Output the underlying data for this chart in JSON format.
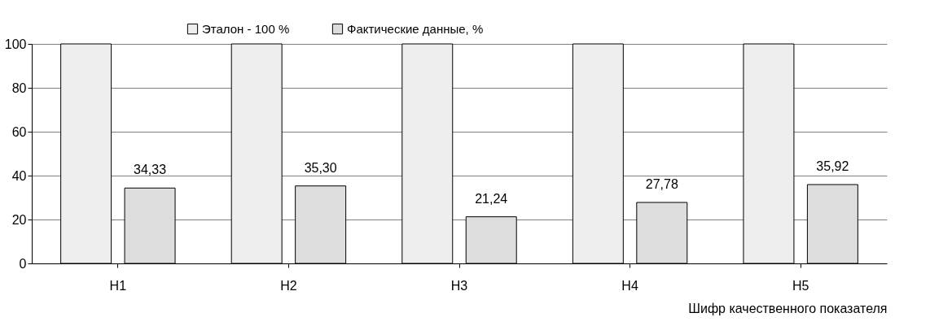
{
  "chart_data": {
    "type": "bar",
    "xlabel": "Шифр качественного показателя",
    "categories": [
      "Н1",
      "Н2",
      "Н3",
      "Н4",
      "Н5"
    ],
    "series": [
      {
        "name": "Эталон - 100 %",
        "color": "#eeeeee",
        "values": [
          100,
          100,
          100,
          100,
          100
        ]
      },
      {
        "name": "Фактические данные, %",
        "color": "#dddddd",
        "values": [
          34.33,
          35.3,
          21.24,
          27.78,
          35.92
        ],
        "value_labels": [
          "34,33",
          "35,30",
          "21,24",
          "27,78",
          "35,92"
        ]
      }
    ],
    "ylim": [
      0,
      100
    ],
    "yticks": [
      0,
      20,
      40,
      60,
      80,
      100
    ],
    "grid": "y",
    "legend": "top"
  }
}
